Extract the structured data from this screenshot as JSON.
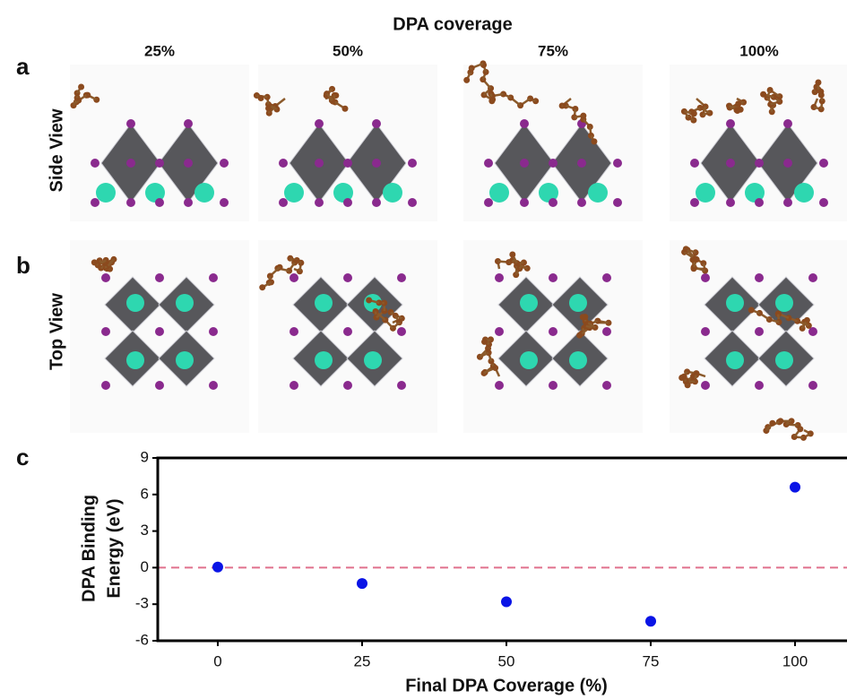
{
  "heading": "DPA coverage",
  "columns": [
    "25%",
    "50%",
    "75%",
    "100%"
  ],
  "panels": [
    {
      "letter": "a",
      "label": "Side View"
    },
    {
      "letter": "b",
      "label": "Top View"
    },
    {
      "letter": "c"
    }
  ],
  "chart_data": {
    "type": "scatter",
    "xlabel": "Final DPA Coverage (%)",
    "ylabel": [
      "DPA Binding",
      "Energy (eV)"
    ],
    "x": [
      0,
      25,
      50,
      75,
      100
    ],
    "series": [
      {
        "color": "#0a14e6",
        "values": [
          0.05,
          -1.3,
          -2.8,
          -4.4,
          6.6
        ]
      }
    ],
    "xlim": [
      -10.4,
      109
    ],
    "xticks": [
      0,
      25,
      50,
      75,
      100
    ],
    "ylim": [
      -6,
      9
    ],
    "yticks": [
      -6,
      -3,
      0,
      3,
      6,
      9
    ],
    "reference_line": {
      "value": 0,
      "color": "#e0708c"
    }
  }
}
